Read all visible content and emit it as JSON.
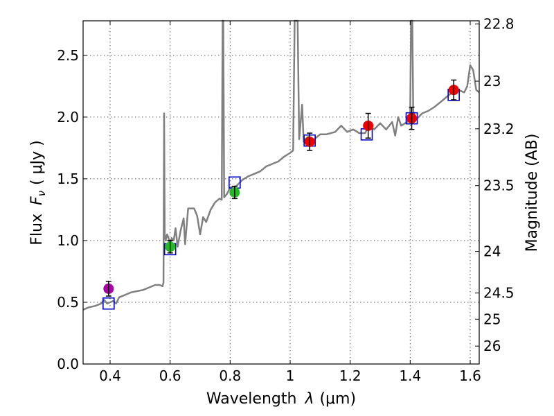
{
  "chart_data": {
    "type": "scatter",
    "xlabel_text": "Wavelength",
    "xlabel_symbol": "λ",
    "xlabel_unit": "(μm)",
    "ylabel_text": "Flux",
    "ylabel_symbol": "F",
    "ylabel_subscript": "ν",
    "ylabel_unit": "( μJy )",
    "y2label": "Magnitude (AB)",
    "xlim": [
      0.31,
      1.63
    ],
    "ylim": [
      0.0,
      2.78
    ],
    "grid": true,
    "x_ticks": [
      0.4,
      0.6,
      0.8,
      1.0,
      1.2,
      1.4,
      1.6
    ],
    "x_tick_labels": [
      "0.4",
      "0.6",
      "0.8",
      "1",
      "1.2",
      "1.4",
      "1.6"
    ],
    "y_ticks": [
      0.0,
      0.5,
      1.0,
      1.5,
      2.0,
      2.5
    ],
    "y_tick_labels": [
      "0.0",
      "0.5",
      "1.0",
      "1.5",
      "2.0",
      "2.5"
    ],
    "y2_ticks": [
      {
        "label": "22.8",
        "flux": 2.754
      },
      {
        "label": "23",
        "flux": 2.291
      },
      {
        "label": "23.2",
        "flux": 1.905
      },
      {
        "label": "23.5",
        "flux": 1.445
      },
      {
        "label": "24",
        "flux": 0.912
      },
      {
        "label": "24.5",
        "flux": 0.575
      },
      {
        "label": "25",
        "flux": 0.363
      },
      {
        "label": "26",
        "flux": 0.145
      }
    ],
    "spectrum_color": "#808080",
    "spectrum": [
      [
        0.31,
        0.44
      ],
      [
        0.33,
        0.46
      ],
      [
        0.35,
        0.47
      ],
      [
        0.37,
        0.49
      ],
      [
        0.38,
        0.52
      ],
      [
        0.39,
        0.49
      ],
      [
        0.4,
        0.5
      ],
      [
        0.41,
        0.51
      ],
      [
        0.42,
        0.49
      ],
      [
        0.43,
        0.54
      ],
      [
        0.45,
        0.56
      ],
      [
        0.47,
        0.58
      ],
      [
        0.49,
        0.59
      ],
      [
        0.51,
        0.6
      ],
      [
        0.53,
        0.62
      ],
      [
        0.55,
        0.64
      ],
      [
        0.565,
        0.64
      ],
      [
        0.575,
        0.63
      ],
      [
        0.578,
        0.66
      ],
      [
        0.58,
        2.03
      ],
      [
        0.582,
        1.05
      ],
      [
        0.585,
        1.0
      ],
      [
        0.59,
        1.05
      ],
      [
        0.595,
        1.02
      ],
      [
        0.6,
        0.9
      ],
      [
        0.605,
        1.02
      ],
      [
        0.612,
        1.0
      ],
      [
        0.618,
        1.1
      ],
      [
        0.625,
        0.95
      ],
      [
        0.635,
        1.08
      ],
      [
        0.645,
        1.18
      ],
      [
        0.65,
        0.97
      ],
      [
        0.66,
        1.26
      ],
      [
        0.68,
        1.26
      ],
      [
        0.69,
        1.2
      ],
      [
        0.7,
        1.05
      ],
      [
        0.71,
        1.19
      ],
      [
        0.72,
        1.15
      ],
      [
        0.735,
        1.25
      ],
      [
        0.75,
        1.31
      ],
      [
        0.765,
        1.34
      ],
      [
        0.772,
        1.33
      ],
      [
        0.775,
        2.78
      ],
      [
        0.777,
        2.78
      ],
      [
        0.78,
        1.35
      ],
      [
        0.79,
        1.38
      ],
      [
        0.8,
        1.43
      ],
      [
        0.82,
        1.44
      ],
      [
        0.84,
        1.49
      ],
      [
        0.86,
        1.52
      ],
      [
        0.88,
        1.54
      ],
      [
        0.9,
        1.56
      ],
      [
        0.92,
        1.6
      ],
      [
        0.94,
        1.62
      ],
      [
        0.96,
        1.64
      ],
      [
        0.98,
        1.68
      ],
      [
        1.0,
        1.71
      ],
      [
        1.01,
        1.73
      ],
      [
        1.015,
        2.78
      ],
      [
        1.025,
        2.78
      ],
      [
        1.03,
        1.82
      ],
      [
        1.04,
        2.1
      ],
      [
        1.045,
        1.8
      ],
      [
        1.05,
        1.82
      ],
      [
        1.06,
        1.84
      ],
      [
        1.07,
        1.81
      ],
      [
        1.08,
        1.82
      ],
      [
        1.1,
        1.86
      ],
      [
        1.12,
        1.86
      ],
      [
        1.15,
        1.88
      ],
      [
        1.17,
        1.93
      ],
      [
        1.19,
        1.88
      ],
      [
        1.21,
        1.9
      ],
      [
        1.23,
        1.87
      ],
      [
        1.25,
        1.87
      ],
      [
        1.26,
        1.92
      ],
      [
        1.28,
        1.9
      ],
      [
        1.3,
        1.95
      ],
      [
        1.32,
        1.9
      ],
      [
        1.34,
        1.96
      ],
      [
        1.35,
        1.85
      ],
      [
        1.36,
        2.0
      ],
      [
        1.37,
        1.93
      ],
      [
        1.39,
        1.96
      ],
      [
        1.4,
        2.0
      ],
      [
        1.403,
        2.78
      ],
      [
        1.407,
        2.78
      ],
      [
        1.41,
        2.05
      ],
      [
        1.42,
        1.98
      ],
      [
        1.44,
        2.03
      ],
      [
        1.46,
        2.05
      ],
      [
        1.48,
        2.08
      ],
      [
        1.5,
        2.12
      ],
      [
        1.52,
        2.16
      ],
      [
        1.54,
        2.2
      ],
      [
        1.56,
        2.22
      ],
      [
        1.58,
        2.2
      ],
      [
        1.59,
        2.25
      ],
      [
        1.6,
        2.42
      ],
      [
        1.61,
        2.38
      ],
      [
        1.62,
        2.22
      ],
      [
        1.63,
        2.2
      ]
    ],
    "model_points": [
      {
        "x": 0.395,
        "y": 0.49
      },
      {
        "x": 0.6,
        "y": 0.93
      },
      {
        "x": 0.815,
        "y": 1.47
      },
      {
        "x": 1.065,
        "y": 1.81
      },
      {
        "x": 1.255,
        "y": 1.86
      },
      {
        "x": 1.405,
        "y": 1.99
      },
      {
        "x": 1.545,
        "y": 2.18
      }
    ],
    "model_color": "#0000cc",
    "observed_points": [
      {
        "x": 0.395,
        "y": 0.61,
        "err": 0.06,
        "color": "#aa00aa"
      },
      {
        "x": 0.6,
        "y": 0.95,
        "err": 0.05,
        "color": "#22bb22"
      },
      {
        "x": 0.815,
        "y": 1.39,
        "err": 0.05,
        "color": "#22bb22"
      },
      {
        "x": 1.065,
        "y": 1.8,
        "err": 0.07,
        "color": "#ee0000"
      },
      {
        "x": 1.26,
        "y": 1.93,
        "err": 0.1,
        "color": "#ee0000"
      },
      {
        "x": 1.405,
        "y": 1.99,
        "err": 0.09,
        "color": "#ee0000"
      },
      {
        "x": 1.545,
        "y": 2.22,
        "err": 0.08,
        "color": "#ee0000"
      }
    ]
  }
}
